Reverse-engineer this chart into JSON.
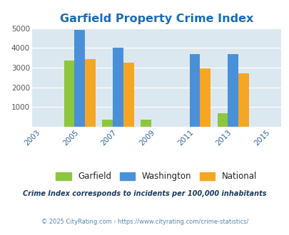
{
  "title": "Garfield Property Crime Index",
  "years": [
    2005,
    2007,
    2009,
    2011,
    2013
  ],
  "x_ticks": [
    2003,
    2005,
    2007,
    2009,
    2011,
    2013,
    2015
  ],
  "garfield": [
    3380,
    380,
    380,
    0,
    680
  ],
  "washington": [
    4900,
    4020,
    0,
    3700,
    3700
  ],
  "national": [
    3450,
    3250,
    0,
    2970,
    2730
  ],
  "bar_colors": {
    "garfield": "#8dc63f",
    "washington": "#4a90d9",
    "national": "#f5a623"
  },
  "ylim": [
    0,
    5000
  ],
  "yticks": [
    0,
    1000,
    2000,
    3000,
    4000,
    5000
  ],
  "bg_color": "#dce8f0",
  "title_color": "#1a6cb5",
  "legend_labels": [
    "Garfield",
    "Washington",
    "National"
  ],
  "footnote1": "Crime Index corresponds to incidents per 100,000 inhabitants",
  "footnote2": "© 2025 CityRating.com - https://www.cityrating.com/crime-statistics/",
  "bar_width": 0.55
}
